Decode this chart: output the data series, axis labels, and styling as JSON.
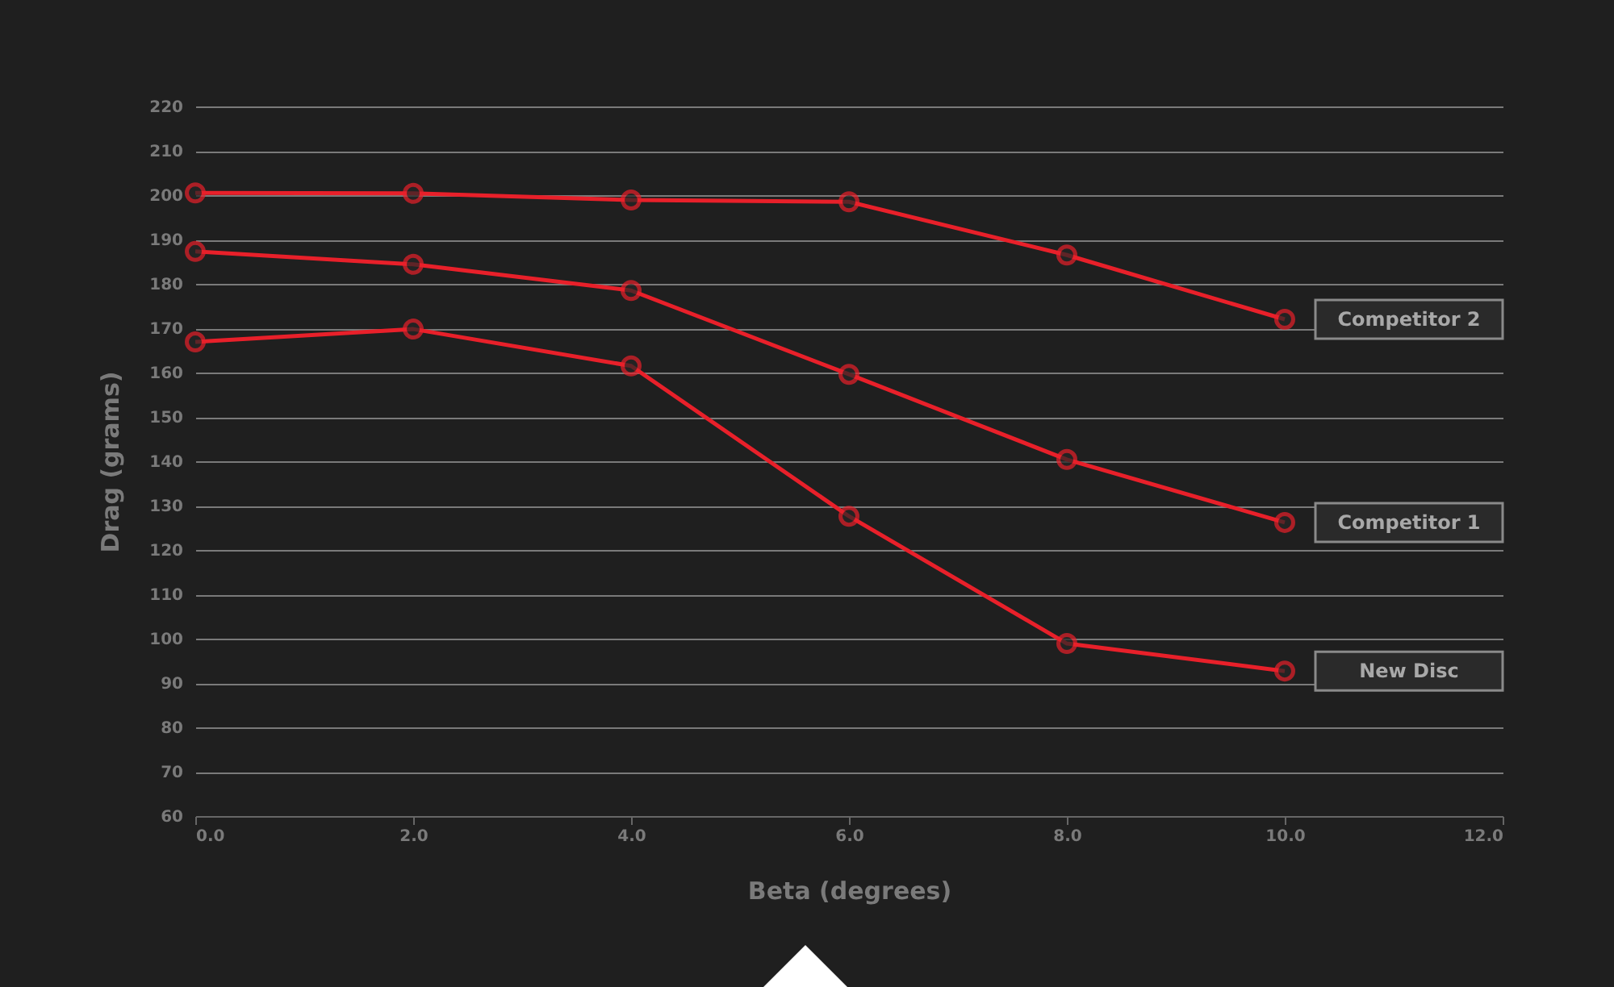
{
  "chart_data": {
    "type": "line",
    "xlabel": "Beta (degrees)",
    "ylabel": "Drag (grams)",
    "x": [
      0,
      2,
      4,
      6,
      8,
      10
    ],
    "series": [
      {
        "name": "Competitor 2",
        "color": "#e8202a",
        "values": [
          200.5,
          200.4,
          198.9,
          198.5,
          186.5,
          172
        ]
      },
      {
        "name": "Competitor 1",
        "color": "#e8202a",
        "values": [
          187.3,
          184.4,
          178.5,
          159.6,
          140.4,
          126.2
        ]
      },
      {
        "name": "New Disc",
        "color": "#e8202a",
        "values": [
          166.9,
          169.8,
          161.5,
          127.6,
          98.9,
          92.7
        ]
      }
    ],
    "xlim": [
      0,
      12
    ],
    "xticks": [
      {
        "value": 0,
        "label": "0.0"
      },
      {
        "value": 2,
        "label": "2.0"
      },
      {
        "value": 4,
        "label": "4.0"
      },
      {
        "value": 6,
        "label": "6.0"
      },
      {
        "value": 8,
        "label": "8.0"
      },
      {
        "value": 10,
        "label": "10.0"
      },
      {
        "value": 12,
        "label": "12.0"
      }
    ],
    "ylim": [
      60,
      220
    ],
    "yticks": [
      60,
      70,
      80,
      90,
      100,
      110,
      120,
      130,
      140,
      150,
      160,
      170,
      180,
      190,
      200,
      210,
      220
    ],
    "grid": "y",
    "marker": "circle",
    "line_style": "solid"
  }
}
